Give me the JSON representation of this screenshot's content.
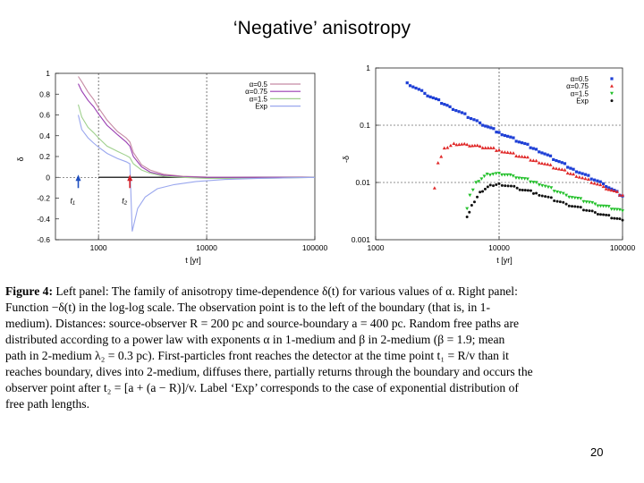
{
  "slide": {
    "title": "‘Negative’ anisotropy",
    "page_number": "20"
  },
  "caption": {
    "lead": "Figure 4:",
    "lines": [
      "Left panel: The family of anisotropy time-dependence δ(t) for various values of α. Right panel:",
      "Function −δ(t) in the log-log scale. The observation point is to the left of the boundary (that is, in 1-",
      "medium). Distances: source-observer R = 200 pc and source-boundary a = 400 pc. Random free paths are",
      "distributed according to a power law with exponents α in 1-medium and β in 2-medium (β = 1.9; mean",
      "path in 2-medium λ₂ = 0.3 pc). First-particles front reaches the detector at the time point t₁ = R/v than it",
      "reaches boundary, dives into 2-medium, diffuses there, partially returns through the boundary and occurs the",
      "observer point after t₂ = [a + (a − R)]/v. Label ‘Exp’ corresponds to the case of exponential distribution of",
      "free path lengths."
    ]
  },
  "chart_data": [
    {
      "type": "line",
      "panel": "left",
      "xlabel": "t  [yr]",
      "ylabel": "δ",
      "xscale": "log",
      "xlim": [
        400,
        100000
      ],
      "ylim": [
        -0.6,
        1.0
      ],
      "xticks": [
        1000,
        10000,
        100000
      ],
      "xtick_labels": [
        "1000",
        "10000",
        "100000"
      ],
      "yticks": [
        -0.6,
        -0.4,
        -0.2,
        0,
        0.2,
        0.4,
        0.6,
        0.8,
        1.0
      ],
      "ytick_labels": [
        "-0.6",
        "-0.4",
        "-0.2",
        "0",
        "0.2",
        "0.4",
        "0.6",
        "0.8",
        "1"
      ],
      "grid": "dashed lines at x=1000, x=10000, y=0",
      "legend_position": "top-right",
      "markers": [
        {
          "label": "t₁",
          "x": 650,
          "color": "#1f4fbf"
        },
        {
          "label": "t₂",
          "x": 1950,
          "color": "#d0202a"
        }
      ],
      "series": [
        {
          "name": "α=0.5",
          "color": "#c58aa3",
          "x": [
            650,
            700,
            800,
            900,
            1000,
            1200,
            1500,
            1800,
            1950,
            2100,
            2500,
            3000,
            4000,
            6000,
            10000,
            30000,
            100000
          ],
          "y": [
            0.97,
            0.92,
            0.82,
            0.75,
            0.67,
            0.55,
            0.44,
            0.38,
            0.34,
            0.24,
            0.12,
            0.07,
            0.03,
            0.01,
            0.003,
            0.0,
            0.0
          ]
        },
        {
          "name": "α=0.75",
          "color": "#9a3db2",
          "x": [
            650,
            700,
            800,
            900,
            1000,
            1200,
            1500,
            1800,
            1950,
            2100,
            2500,
            3000,
            4000,
            6000,
            10000,
            30000,
            100000
          ],
          "y": [
            0.9,
            0.83,
            0.74,
            0.68,
            0.61,
            0.5,
            0.41,
            0.34,
            0.3,
            0.2,
            0.1,
            0.05,
            0.02,
            0.005,
            0.0,
            0.0,
            0.0
          ]
        },
        {
          "name": "α=1.5",
          "color": "#9fd08d",
          "x": [
            650,
            700,
            800,
            900,
            1000,
            1200,
            1500,
            1800,
            1950,
            2100,
            2500,
            3000,
            4000,
            6000,
            10000,
            30000,
            100000
          ],
          "y": [
            0.7,
            0.58,
            0.48,
            0.43,
            0.38,
            0.3,
            0.25,
            0.21,
            0.19,
            0.13,
            0.07,
            0.04,
            0.01,
            0.0,
            -0.01,
            -0.01,
            0.0
          ]
        },
        {
          "name": "Exp",
          "color": "#9aa7ee",
          "x": [
            650,
            700,
            800,
            900,
            1000,
            1200,
            1500,
            1800,
            1950,
            2050,
            2300,
            2700,
            3500,
            5000,
            8000,
            15000,
            30000,
            100000
          ],
          "y": [
            0.6,
            0.46,
            0.38,
            0.33,
            0.29,
            0.23,
            0.18,
            0.15,
            0.13,
            -0.52,
            -0.3,
            -0.19,
            -0.11,
            -0.07,
            -0.04,
            -0.02,
            -0.01,
            0.0
          ]
        }
      ]
    },
    {
      "type": "scatter",
      "panel": "right",
      "xlabel": "t  [yr]",
      "ylabel": "-δ",
      "xscale": "log",
      "yscale": "log",
      "xlim": [
        1000,
        100000
      ],
      "ylim": [
        0.001,
        1
      ],
      "xticks": [
        1000,
        10000,
        100000
      ],
      "xtick_labels": [
        "1000",
        "10000",
        "100000"
      ],
      "yticks": [
        0.001,
        0.01,
        0.1,
        1
      ],
      "ytick_labels": [
        "0.001",
        "0.01",
        "0.1",
        "1"
      ],
      "grid": "dashed lines at x=10000, y=0.01, y=0.1",
      "legend_position": "top-right",
      "series": [
        {
          "name": "α=0.5",
          "color": "#1e3fd6",
          "marker": "square",
          "points": [
            [
              1800,
              0.55
            ],
            [
              2500,
              0.36
            ],
            [
              4000,
              0.21
            ],
            [
              7000,
              0.11
            ],
            [
              10000,
              0.075
            ],
            [
              20000,
              0.038
            ],
            [
              40000,
              0.017
            ],
            [
              70000,
              0.0095
            ],
            [
              100000,
              0.0058
            ]
          ]
        },
        {
          "name": "α=0.75",
          "color": "#e02828",
          "marker": "triangle",
          "points": [
            [
              3000,
              0.008
            ],
            [
              3200,
              0.022
            ],
            [
              3600,
              0.04
            ],
            [
              4300,
              0.048
            ],
            [
              5500,
              0.046
            ],
            [
              7000,
              0.043
            ],
            [
              10000,
              0.037
            ],
            [
              20000,
              0.024
            ],
            [
              40000,
              0.014
            ],
            [
              70000,
              0.0085
            ],
            [
              100000,
              0.006
            ]
          ]
        },
        {
          "name": "α=1.5",
          "color": "#22c02a",
          "marker": "triangle-down",
          "points": [
            [
              5500,
              0.0035
            ],
            [
              5800,
              0.006
            ],
            [
              6500,
              0.01
            ],
            [
              8000,
              0.014
            ],
            [
              10000,
              0.0145
            ],
            [
              13000,
              0.013
            ],
            [
              20000,
              0.01
            ],
            [
              35000,
              0.006
            ],
            [
              60000,
              0.0042
            ],
            [
              100000,
              0.0032
            ]
          ]
        },
        {
          "name": "Exp",
          "color": "#111111",
          "marker": "circle",
          "points": [
            [
              5500,
              0.0025
            ],
            [
              6000,
              0.004
            ],
            [
              7000,
              0.0068
            ],
            [
              8500,
              0.009
            ],
            [
              10000,
              0.0095
            ],
            [
              14000,
              0.008
            ],
            [
              20000,
              0.0065
            ],
            [
              35000,
              0.0042
            ],
            [
              60000,
              0.003
            ],
            [
              100000,
              0.0022
            ]
          ]
        }
      ]
    }
  ]
}
